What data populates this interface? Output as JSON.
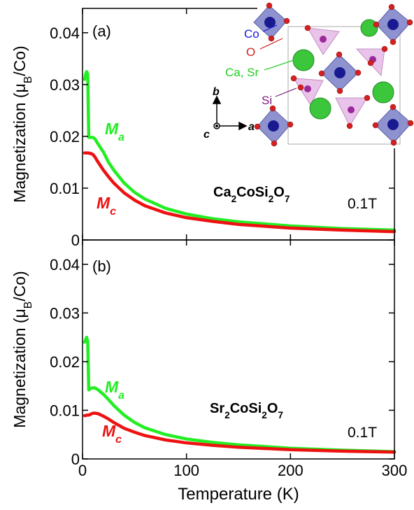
{
  "chart_data": [
    {
      "type": "line",
      "panel_label": "(a)",
      "ylabel": [
        "Magnetization (μ",
        "B",
        "/Co)"
      ],
      "formula": [
        "Ca",
        "2",
        "CoSi",
        "2",
        "O",
        "7"
      ],
      "field": "0.1T",
      "x": [
        2,
        3,
        4,
        5,
        6,
        7,
        8,
        10,
        12,
        15,
        20,
        25,
        30,
        40,
        50,
        60,
        80,
        100,
        125,
        150,
        200,
        250,
        300
      ],
      "series": [
        {
          "name": "M",
          "subscript": "a",
          "color": "#22ee22",
          "values": [
            0.031,
            0.032,
            0.0325,
            0.032,
            0.0198,
            0.0198,
            0.0198,
            0.0198,
            0.0195,
            0.0185,
            0.017,
            0.015,
            0.0135,
            0.011,
            0.0092,
            0.0079,
            0.0061,
            0.005,
            0.0041,
            0.0035,
            0.0027,
            0.0022,
            0.0019
          ]
        },
        {
          "name": "M",
          "subscript": "c",
          "color": "#ee1111",
          "values": [
            0.0168,
            0.0168,
            0.0168,
            0.0168,
            0.0168,
            0.0167,
            0.0167,
            0.0165,
            0.016,
            0.015,
            0.0135,
            0.0122,
            0.011,
            0.0091,
            0.0077,
            0.0066,
            0.0052,
            0.0043,
            0.0036,
            0.003,
            0.0023,
            0.0019,
            0.0016
          ]
        }
      ],
      "xlim": [
        0,
        300
      ],
      "xticks": [
        0,
        100,
        200,
        300
      ],
      "ylim": [
        0,
        0.0447
      ],
      "yticks": [
        0,
        0.01,
        0.02,
        0.03,
        0.04
      ],
      "inset": {
        "labels": [
          "Co",
          "O",
          "Ca, Sr",
          "Si"
        ],
        "axes": [
          "b",
          "c",
          "a"
        ]
      }
    },
    {
      "type": "line",
      "panel_label": "(b)",
      "ylabel": [
        "Magnetization (μ",
        "B",
        "/Co)"
      ],
      "xlabel": "Temperature (K)",
      "formula": [
        "Sr",
        "2",
        "CoSi",
        "2",
        "O",
        "7"
      ],
      "field": "0.1T",
      "x": [
        2,
        3,
        4,
        5,
        6,
        7,
        8,
        10,
        12,
        15,
        20,
        25,
        30,
        40,
        50,
        60,
        80,
        100,
        125,
        150,
        200,
        250,
        300
      ],
      "series": [
        {
          "name": "M",
          "subscript": "a",
          "color": "#22ee22",
          "values": [
            0.024,
            0.0245,
            0.025,
            0.024,
            0.0142,
            0.0143,
            0.0145,
            0.0146,
            0.0146,
            0.0142,
            0.0133,
            0.0122,
            0.011,
            0.009,
            0.0075,
            0.0064,
            0.005,
            0.0041,
            0.0034,
            0.0029,
            0.0022,
            0.0018,
            0.0015
          ]
        },
        {
          "name": "M",
          "subscript": "c",
          "color": "#ee1111",
          "values": [
            0.0089,
            0.0089,
            0.009,
            0.009,
            0.009,
            0.0091,
            0.0092,
            0.0094,
            0.0094,
            0.0093,
            0.0088,
            0.0082,
            0.0075,
            0.0063,
            0.0055,
            0.0048,
            0.0039,
            0.0033,
            0.0028,
            0.0024,
            0.0019,
            0.0016,
            0.0014
          ]
        }
      ],
      "xlim": [
        0,
        300
      ],
      "xticks": [
        0,
        100,
        200,
        300
      ],
      "ylim": [
        0,
        0.045
      ],
      "yticks": [
        0,
        0.01,
        0.02,
        0.03,
        0.04
      ]
    }
  ]
}
